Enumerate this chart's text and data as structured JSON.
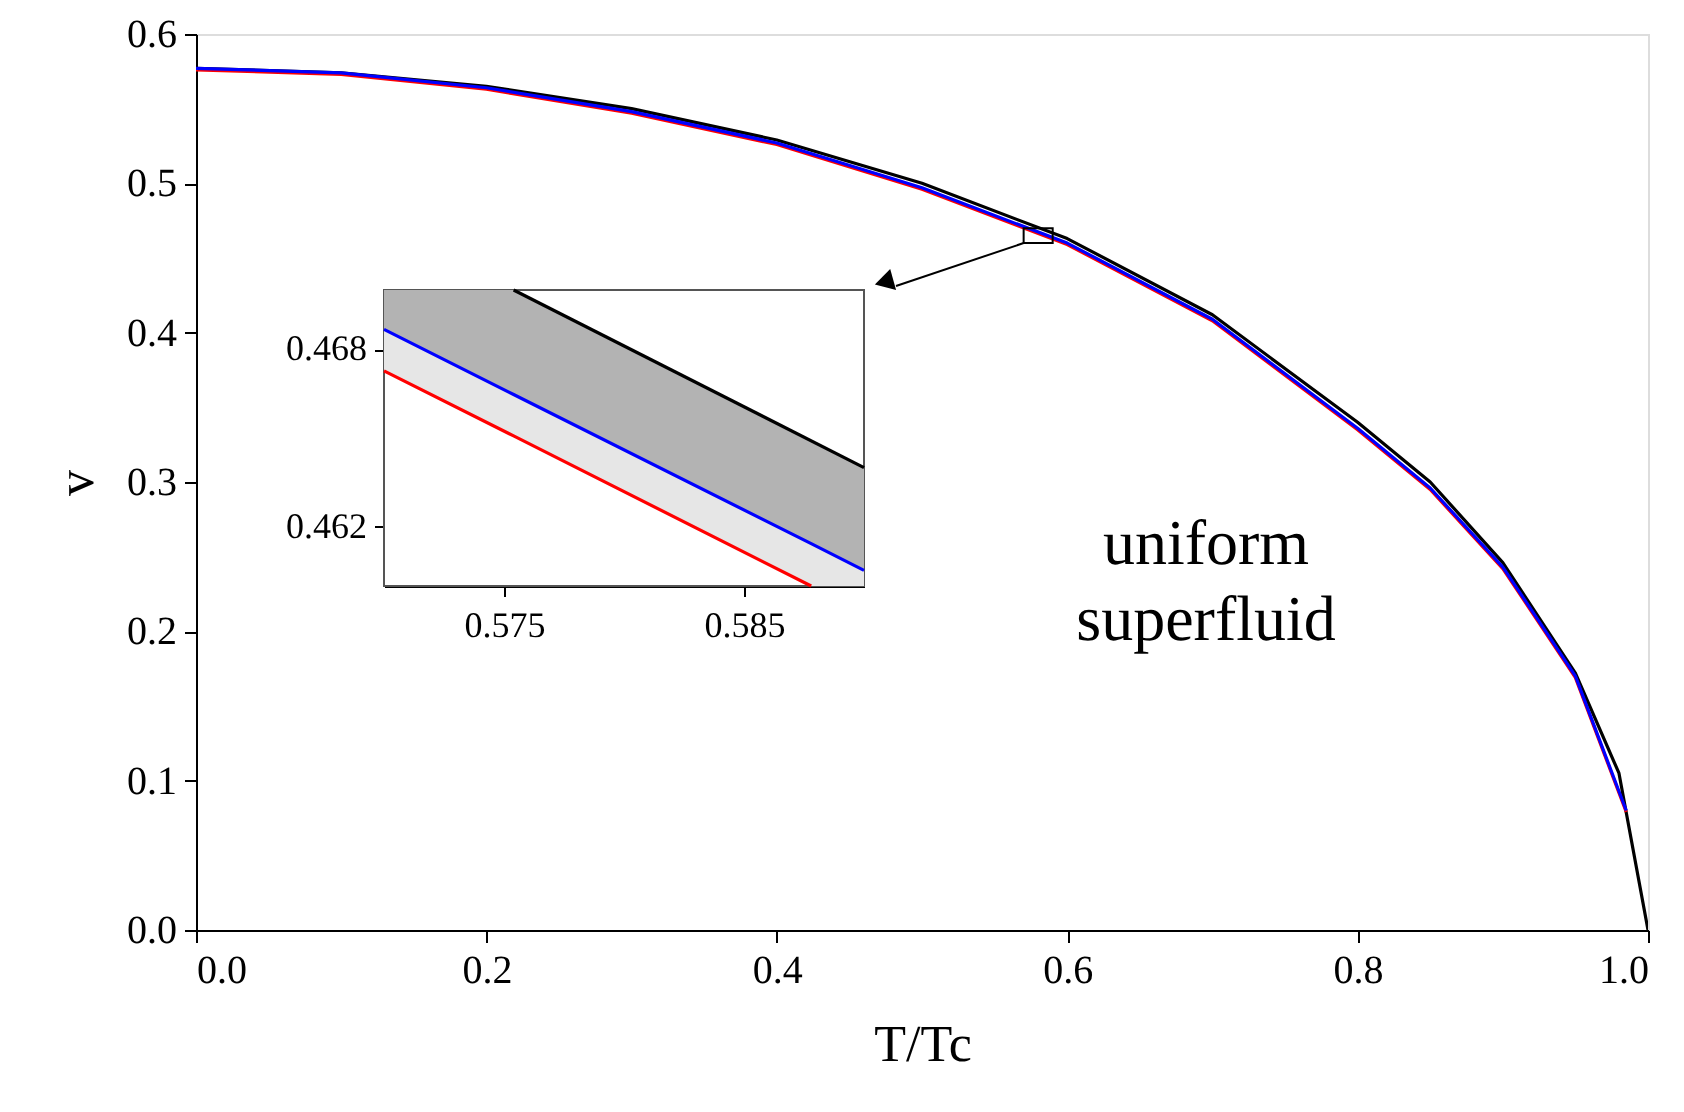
{
  "chart_data": [
    {
      "type": "line",
      "xlabel": "T/Tc",
      "ylabel": "v",
      "xlim": [
        0,
        1
      ],
      "ylim": [
        0,
        0.6
      ],
      "xticks": [
        {
          "value": 0,
          "label": "0.0"
        },
        0.2,
        0.4,
        0.6,
        0.8,
        {
          "value": 1,
          "label": "1.0"
        }
      ],
      "yticks": [
        {
          "value": 0,
          "label": "0.0"
        },
        0.1,
        0.2,
        0.3,
        0.4,
        0.5,
        0.6
      ],
      "grid": false,
      "marker": "none",
      "line_style": "solid",
      "annotations": [
        "uniform superfluid"
      ],
      "series": [
        {
          "color": "#000000",
          "x": [
            0,
            0.1,
            0.2,
            0.3,
            0.4,
            0.5,
            0.6,
            0.7,
            0.8,
            0.85,
            0.9,
            0.95,
            0.98,
            1.0
          ],
          "values": [
            0.577,
            0.574,
            0.565,
            0.55,
            0.529,
            0.5,
            0.463,
            0.412,
            0.34,
            0.3,
            0.246,
            0.172,
            0.105,
            0
          ]
        },
        {
          "color": "#ff0000",
          "x": [
            0,
            0.1,
            0.2,
            0.3,
            0.4,
            0.5,
            0.6,
            0.7,
            0.8,
            0.85,
            0.9,
            0.95,
            0.985
          ],
          "values": [
            0.576,
            0.573,
            0.563,
            0.547,
            0.526,
            0.496,
            0.459,
            0.408,
            0.335,
            0.295,
            0.242,
            0.169,
            0.079
          ]
        },
        {
          "color": "#0000ff",
          "x": [
            0,
            0.1,
            0.2,
            0.3,
            0.4,
            0.5,
            0.6,
            0.7,
            0.8,
            0.85,
            0.9,
            0.95,
            0.985
          ],
          "values": [
            0.577,
            0.574,
            0.564,
            0.548,
            0.527,
            0.497,
            0.46,
            0.409,
            0.336,
            0.296,
            0.243,
            0.17,
            0.08
          ]
        }
      ]
    },
    {
      "type": "line",
      "xlim": [
        0.57,
        0.59
      ],
      "ylim": [
        0.46,
        0.47
      ],
      "xticks": [
        0.575,
        0.585
      ],
      "yticks": [
        0.462,
        0.468
      ],
      "grid": false,
      "marker": "none",
      "line_style": "solid",
      "series": [
        {
          "color": "#000000",
          "x": [
            0.5754,
            0.59
          ],
          "values": [
            0.47,
            0.464
          ]
        },
        {
          "color": "#0000ff",
          "x": [
            0.57,
            0.5754,
            0.5878,
            0.59
          ],
          "values": [
            0.46867,
            0.46647,
            0.46143,
            0.46053
          ],
          "upper": [
            0.47,
            0.47,
            0.46491,
            0.464
          ],
          "lower": [
            0.46867,
            0.46647,
            0.46143,
            0.46053
          ]
        },
        {
          "color": "#ff0000",
          "x": [
            0.57,
            0.5754,
            0.5878,
            0.59
          ],
          "values": [
            0.46727,
            0.46507,
            0.46,
            null
          ],
          "upper": [
            0.46867,
            0.46647,
            0.46143,
            0.46053
          ],
          "lower": [
            0.46727,
            0.46507,
            0.46,
            0.46
          ]
        }
      ]
    }
  ]
}
